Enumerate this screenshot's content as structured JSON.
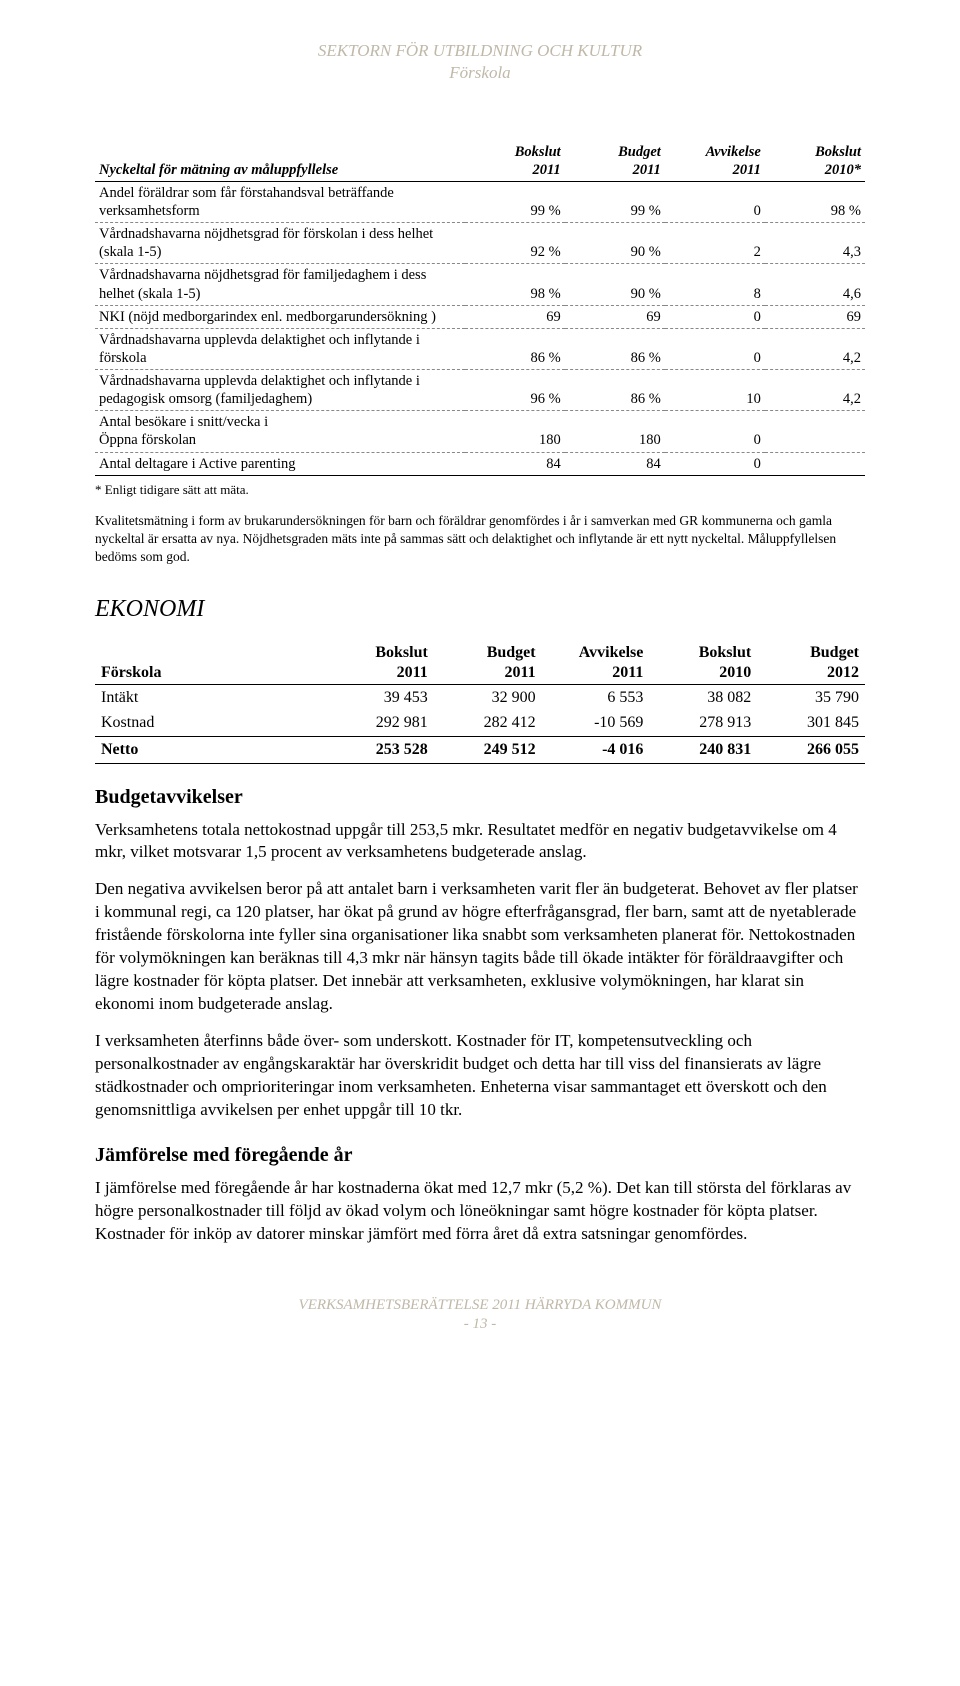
{
  "header": {
    "line1": "SEKTORN FÖR UTBILDNING OCH KULTUR",
    "line2": "Förskola"
  },
  "nyckeltal": {
    "title": "Nyckeltal för mätning av måluppfyllelse",
    "col_headers": {
      "c1": "Bokslut\n2011",
      "c2": "Budget\n2011",
      "c3": "Avvikelse\n2011",
      "c4": "Bokslut\n2010*"
    },
    "rows": [
      {
        "label": "Andel föräldrar som får förstahandsval beträffande verksamhetsform",
        "c1": "99 %",
        "c2": "99 %",
        "c3": "0",
        "c4": "98 %"
      },
      {
        "label": "Vårdnadshavarna nöjdhetsgrad för förskolan i dess helhet (skala 1-5)",
        "c1": "92 %",
        "c2": "90 %",
        "c3": "2",
        "c4": "4,3"
      },
      {
        "label": "Vårdnadshavarna nöjdhetsgrad för familjedaghem i dess helhet (skala 1-5)",
        "c1": "98 %",
        "c2": "90 %",
        "c3": "8",
        "c4": "4,6"
      },
      {
        "label": "NKI (nöjd medborgarindex enl. medborgarundersökning )",
        "c1": "69",
        "c2": "69",
        "c3": "0",
        "c4": "69"
      },
      {
        "label": "Vårdnadshavarna upplevda delaktighet och inflytande i förskola",
        "c1": "86 %",
        "c2": "86 %",
        "c3": "0",
        "c4": "4,2"
      },
      {
        "label": "Vårdnadshavarna upplevda delaktighet och inflytande i pedagogisk omsorg (familjedaghem)",
        "c1": "96 %",
        "c2": "86 %",
        "c3": "10",
        "c4": "4,2"
      },
      {
        "label": "Antal besökare i snitt/vecka i\nÖppna förskolan",
        "c1": "180",
        "c2": "180",
        "c3": "0",
        "c4": ""
      },
      {
        "label": "Antal deltagare i Active parenting",
        "c1": "84",
        "c2": "84",
        "c3": "0",
        "c4": ""
      }
    ],
    "footnote": "* Enligt tidigare sätt att mäta.",
    "note": "Kvalitetsmätning i form av brukarundersökningen för barn och föräldrar genomfördes i år i samverkan med GR kommunerna och gamla nyckeltal är ersatta av nya. Nöjdhetsgraden mäts inte på sammas sätt och delaktighet och inflytande är ett nytt nyckeltal. Måluppfyllelsen bedöms som god."
  },
  "ekonomi": {
    "heading": "EKONOMI",
    "table": {
      "row_header": "Förskola",
      "col_headers": {
        "c1": "Bokslut\n2011",
        "c2": "Budget\n2011",
        "c3": "Avvikelse\n2011",
        "c4": "Bokslut\n2010",
        "c5": "Budget\n2012"
      },
      "rows": [
        {
          "label": "Intäkt",
          "c1": "39 453",
          "c2": "32 900",
          "c3": "6 553",
          "c4": "38 082",
          "c5": "35 790"
        },
        {
          "label": "Kostnad",
          "c1": "292 981",
          "c2": "282 412",
          "c3": "-10 569",
          "c4": "278 913",
          "c5": "301 845"
        },
        {
          "label": "Netto",
          "c1": "253 528",
          "c2": "249 512",
          "c3": "-4 016",
          "c4": "240 831",
          "c5": "266 055"
        }
      ]
    },
    "budget_heading": "Budgetavvikelser",
    "budget_p1": "Verksamhetens totala nettokostnad uppgår till 253,5 mkr. Resultatet medför en negativ budgetavvikelse om 4 mkr, vilket motsvarar 1,5 procent av verksamhetens budgeterade anslag.",
    "budget_p2": "Den negativa avvikelsen beror på att antalet barn i verksamheten varit fler än budgeterat. Behovet av fler platser i kommunal regi, ca 120 platser, har ökat på grund av högre efterfrågansgrad, fler barn, samt att de nyetablerade fristående förskolorna inte fyller sina organisationer lika snabbt som verksamheten planerat för. Nettokostnaden för volymökningen kan beräknas till 4,3 mkr när hänsyn tagits både till ökade intäkter för föräldraavgifter och lägre kostnader för köpta platser. Det innebär att verksamheten, exklusive volymökningen, har klarat sin ekonomi inom budgeterade anslag.",
    "budget_p3": "I verksamheten återfinns både över- som underskott. Kostnader för IT, kompetensutveckling och personalkostnader av engångskaraktär har överskridit budget och detta har till viss del finansierats av lägre städkostnader och omprioriteringar inom verksamheten. Enheterna visar sammantaget ett överskott och den genomsnittliga avvikelsen per enhet uppgår till 10 tkr.",
    "jamfor_heading": "Jämförelse med föregående år",
    "jamfor_p1": "I jämförelse med föregående år har kostnaderna ökat med 12,7 mkr (5,2 %). Det kan till största del förklaras av högre personalkostnader till följd av ökad volym och löneökningar samt högre kostnader för köpta platser. Kostnader för inköp av datorer minskar jämfört med förra året då extra satsningar genomfördes."
  },
  "footer": {
    "line1": "VERKSAMHETSBERÄTTELSE 2011 HÄRRYDA KOMMUN",
    "line2": "- 13 -"
  }
}
